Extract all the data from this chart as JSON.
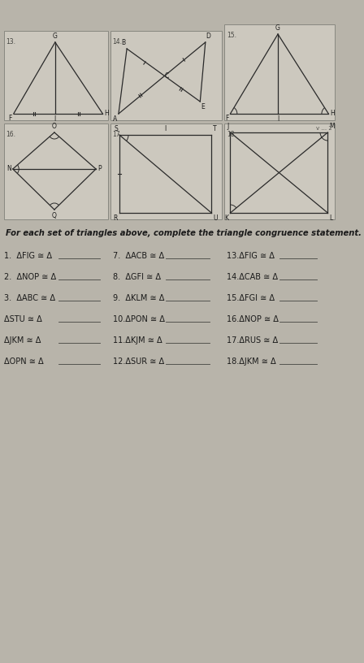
{
  "bg_color": "#b8b4aa",
  "paper_color": "#d4cfc5",
  "box_color": "#ccc8be",
  "line_color": "#2a2a2a",
  "text_color": "#1a1a1a",
  "title": "For each set of triangles above, complete the triangle congruence statement.",
  "col1_items": [
    "1.  ΔFIG ≅ Δ",
    "2.  ΔNOP ≅ Δ",
    "3.  ΔABC ≅ Δ",
    "ΔSTU ≅ Δ",
    "ΔJKM ≅ Δ",
    "ΔOPN ≅ Δ"
  ],
  "col2_items": [
    "7.  ΔACB ≅ Δ",
    "8.  ΔGFI ≅ Δ",
    "9.  ΔKLM ≅ Δ",
    "10.ΔPON ≅ Δ",
    "11.ΔKJM ≅ Δ",
    "12.ΔSUR ≅ Δ"
  ],
  "col3_items": [
    "13.ΔFIG ≅ Δ",
    "14.ΔCAB ≅ Δ",
    "15.ΔFGI ≅ Δ",
    "16.ΔNOP ≅ Δ",
    "17.ΔRUS ≅ Δ",
    "18.ΔJKM ≅ Δ"
  ]
}
